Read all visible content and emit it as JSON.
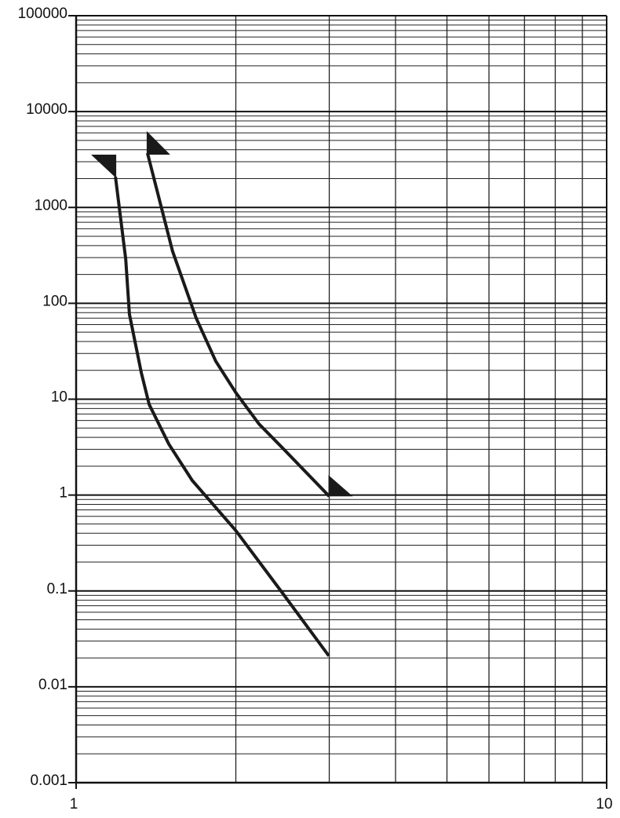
{
  "chart_data": {
    "type": "line",
    "xlog": true,
    "ylog": true,
    "grid": true,
    "xlim": [
      1,
      10
    ],
    "ylim": [
      0.001,
      100000
    ],
    "xticks": [
      1,
      10
    ],
    "yticks": [
      0.001,
      0.01,
      0.1,
      1,
      10,
      100,
      1000,
      10000,
      100000
    ],
    "xminorticks": [
      2,
      3,
      4,
      5,
      6,
      7,
      8,
      9
    ],
    "yminorticks": [
      0.002,
      0.003,
      0.004,
      0.005,
      0.006,
      0.007,
      0.008,
      0.009,
      0.02,
      0.03,
      0.04,
      0.05,
      0.06,
      0.07,
      0.08,
      0.09,
      0.2,
      0.3,
      0.4,
      0.5,
      0.6,
      0.7,
      0.8,
      0.9,
      2,
      3,
      4,
      5,
      6,
      7,
      8,
      9,
      20,
      30,
      40,
      50,
      60,
      70,
      80,
      90,
      200,
      300,
      400,
      500,
      600,
      700,
      800,
      900,
      2000,
      3000,
      4000,
      5000,
      6000,
      7000,
      8000,
      9000,
      20000,
      30000,
      40000,
      50000,
      60000,
      70000,
      80000,
      90000
    ],
    "series": [
      {
        "color": "#1a1a1a",
        "x": [
          1.186,
          1.24,
          1.26,
          1.327,
          1.373,
          1.495,
          1.655,
          1.997,
          2.449,
          2.995
        ],
        "values": [
          2094,
          289,
          77,
          18.8,
          8.8,
          3.4,
          1.42,
          0.43,
          0.095,
          0.021
        ]
      },
      {
        "color": "#1a1a1a",
        "x": [
          1.363,
          1.52,
          1.684,
          1.833,
          2.0,
          2.212,
          2.449,
          3.0
        ],
        "values": [
          3690,
          349,
          70,
          24.9,
          11.7,
          5.5,
          3.1,
          0.97
        ]
      }
    ]
  }
}
